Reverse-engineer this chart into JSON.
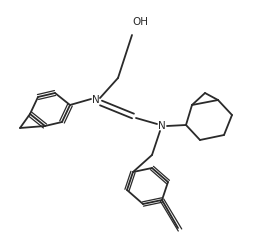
{
  "bg_color": "#ffffff",
  "line_color": "#2a2a2a",
  "line_width": 1.3,
  "oh_label": "OH",
  "n_label": "N",
  "figsize": [
    2.55,
    2.5
  ],
  "dpi": 100
}
